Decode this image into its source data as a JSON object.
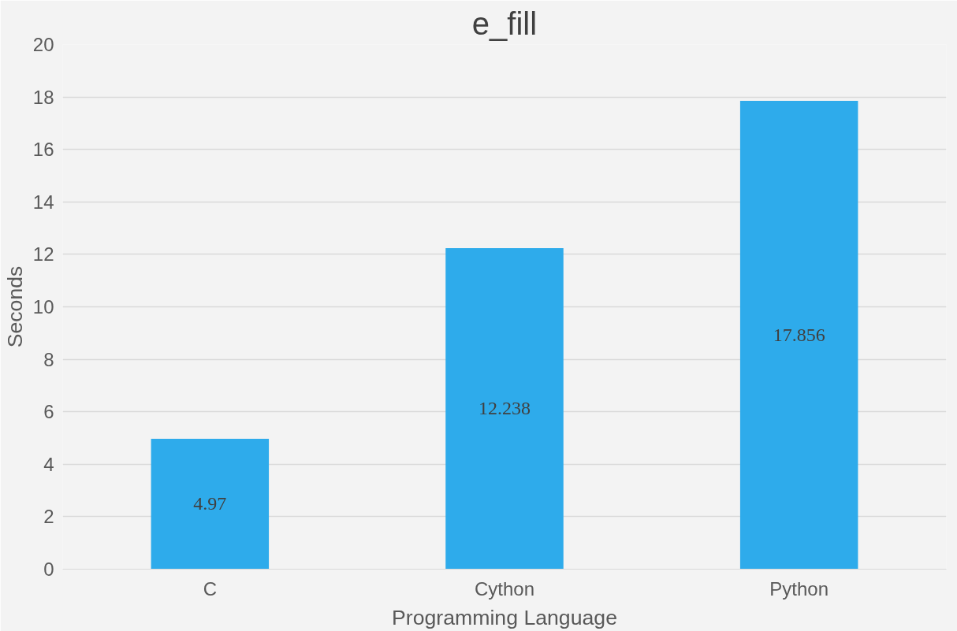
{
  "chart_data": {
    "type": "bar",
    "title": "e_fill",
    "xlabel": "Programming Language",
    "ylabel": "Seconds",
    "categories": [
      "C",
      "Cython",
      "Python"
    ],
    "series": [
      {
        "color": "#2eabeb",
        "values": [
          4.97,
          12.238,
          17.856
        ]
      }
    ],
    "ylim": [
      0,
      20
    ],
    "yticks": [
      0,
      2,
      4,
      6,
      8,
      10,
      12,
      14,
      16,
      18,
      20
    ],
    "grid": "y",
    "data_labels": true
  }
}
